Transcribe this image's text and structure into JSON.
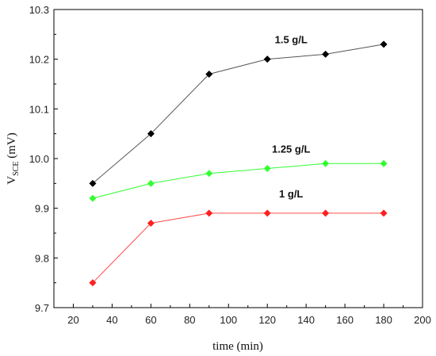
{
  "chart_data": {
    "type": "line",
    "title": "",
    "xlabel": "time (min)",
    "ylabel_main": "V",
    "ylabel_sub": "SCE",
    "ylabel_unit": " (mV)",
    "xlim": [
      10,
      200
    ],
    "ylim": [
      9.7,
      10.3
    ],
    "xticks": [
      "20",
      "40",
      "60",
      "80",
      "100",
      "120",
      "140",
      "160",
      "180",
      "200"
    ],
    "yticks": [
      "9.7",
      "9.8",
      "9.9",
      "10.0",
      "10.1",
      "10.2",
      "10.3"
    ],
    "grid": false,
    "x": [
      30,
      60,
      90,
      120,
      150,
      180
    ],
    "series": [
      {
        "name": "1.5 g/L",
        "values": [
          9.95,
          10.05,
          10.17,
          10.2,
          10.21,
          10.23
        ],
        "color": "#000000",
        "line_color": "#555555",
        "marker": "diamond"
      },
      {
        "name": "1.25 g/L",
        "values": [
          9.92,
          9.95,
          9.97,
          9.98,
          9.99,
          9.99
        ],
        "color": "#33ff33",
        "line_color": "#33ff33",
        "marker": "diamond"
      },
      {
        "name": "1 g/L",
        "values": [
          9.75,
          9.87,
          9.89,
          9.89,
          9.89,
          9.89
        ],
        "color": "#ff2020",
        "line_color": "#ff5050",
        "marker": "diamond"
      }
    ]
  }
}
